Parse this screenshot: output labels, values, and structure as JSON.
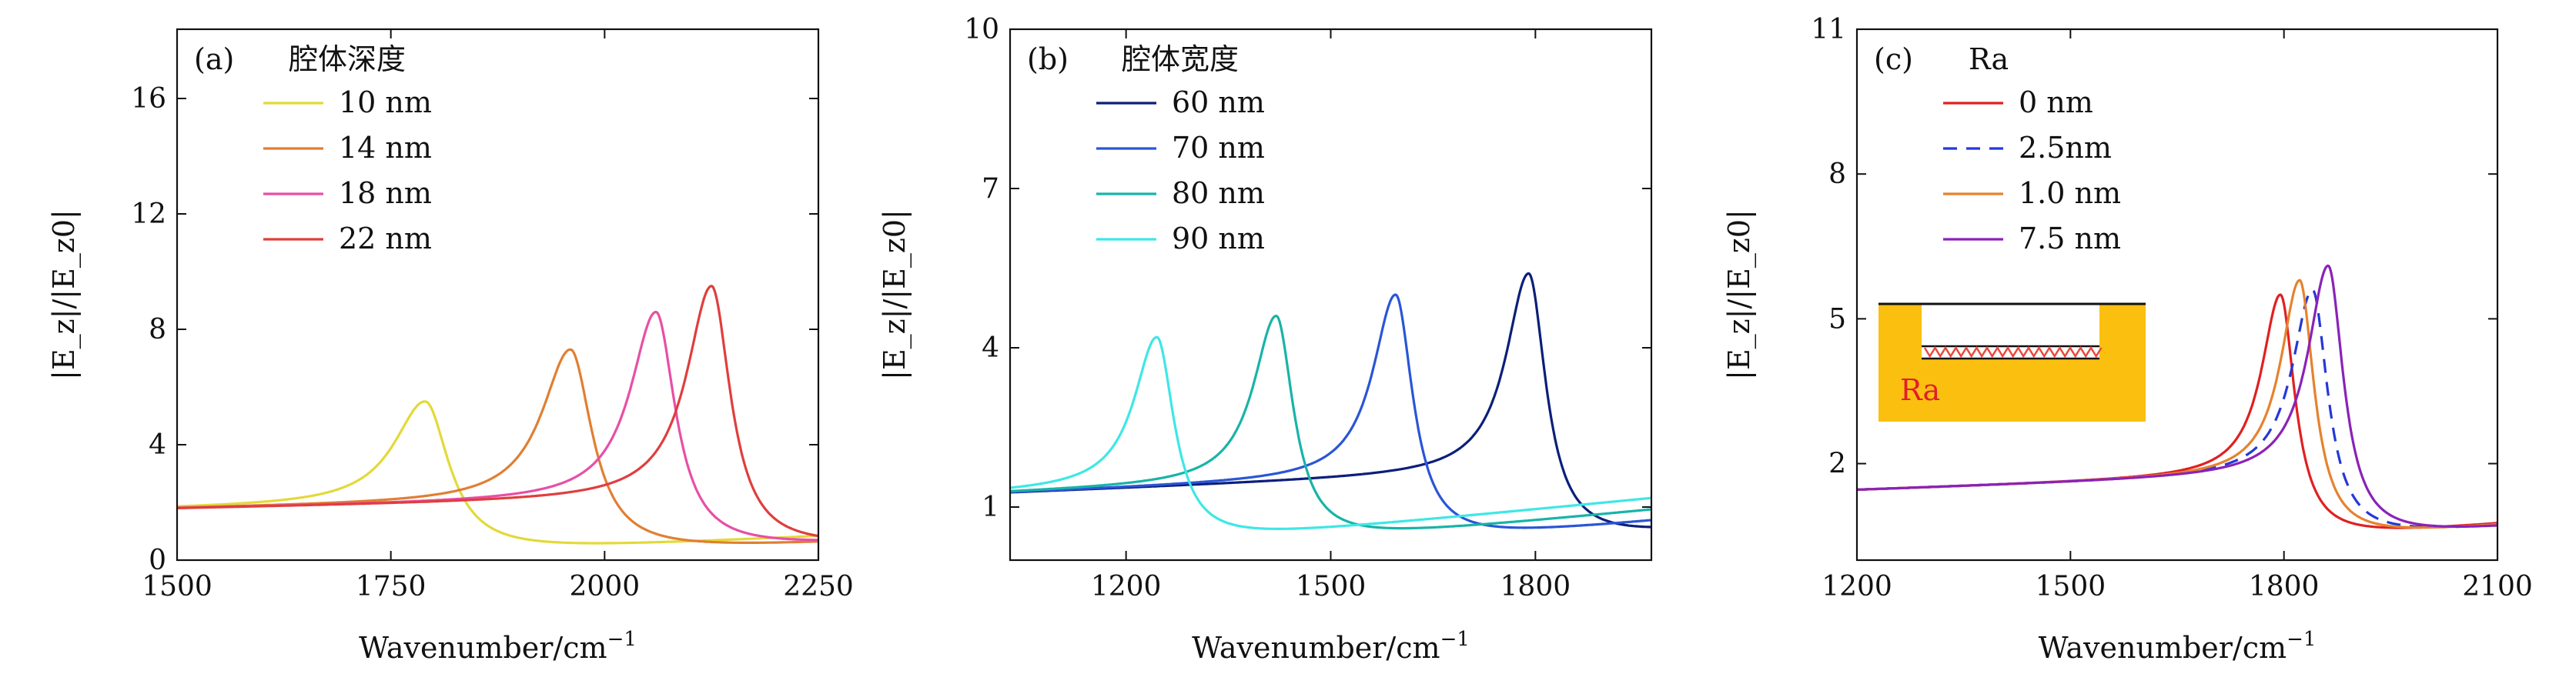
{
  "chart_data": [
    {
      "type": "line",
      "panel": "(a)",
      "legend_title": "腔体深度",
      "xlabel": "Wavenumber/cm",
      "xlabel_exp": "−1",
      "ylabel": "|E_z|/|E_z0|",
      "xlim": [
        1500,
        2250
      ],
      "ylim": [
        0,
        18.4
      ],
      "xticks": [
        1500,
        1750,
        2000,
        2250
      ],
      "yticks": [
        0,
        4,
        8,
        12,
        16
      ],
      "series": [
        {
          "name": "10 nm",
          "color": "#e3d93a",
          "dash": "",
          "base": 1.5,
          "x0": 1790,
          "peak": 5.5,
          "w": 44,
          "tail": 0.15,
          "slope": 0.0016
        },
        {
          "name": "14 nm",
          "color": "#e07f33",
          "dash": "",
          "base": 1.5,
          "x0": 1960,
          "peak": 7.3,
          "w": 40,
          "tail": 0.15,
          "slope": 0.0016
        },
        {
          "name": "18 nm",
          "color": "#e74fa6",
          "dash": "",
          "base": 1.5,
          "x0": 2060,
          "peak": 8.6,
          "w": 36,
          "tail": 0.25,
          "slope": 0.0016
        },
        {
          "name": "22 nm",
          "color": "#df3e3e",
          "dash": "",
          "base": 1.5,
          "x0": 2125,
          "peak": 9.5,
          "w": 35,
          "tail": 0.25,
          "slope": 0.0016
        }
      ]
    },
    {
      "type": "line",
      "panel": "(b)",
      "legend_title": "腔体宽度",
      "xlabel": "Wavenumber/cm",
      "xlabel_exp": "−1",
      "ylabel": "|E_z|/|E_z0|",
      "xlim": [
        1030,
        1970
      ],
      "ylim": [
        0,
        10
      ],
      "xticks": [
        1200,
        1500,
        1800
      ],
      "yticks": [
        1,
        4,
        7,
        10
      ],
      "series": [
        {
          "name": "60 nm",
          "color": "#0b1f7a",
          "dash": "",
          "base": 1.25,
          "x0": 1790,
          "peak": 5.4,
          "w": 40,
          "tail": 0.25,
          "slope": 0.0014
        },
        {
          "name": "70 nm",
          "color": "#2a55d6",
          "dash": "",
          "base": 1.25,
          "x0": 1595,
          "peak": 5.0,
          "w": 40,
          "tail": 0.25,
          "slope": 0.0014
        },
        {
          "name": "80 nm",
          "color": "#19b3a8",
          "dash": "",
          "base": 1.25,
          "x0": 1420,
          "peak": 4.6,
          "w": 40,
          "tail": 0.25,
          "slope": 0.0014
        },
        {
          "name": "90 nm",
          "color": "#3ee7e6",
          "dash": "",
          "base": 1.25,
          "x0": 1245,
          "peak": 4.2,
          "w": 40,
          "tail": 0.25,
          "slope": 0.0014
        }
      ]
    },
    {
      "type": "line",
      "panel": "(c)",
      "legend_title": "Ra",
      "xlabel": "Wavenumber/cm",
      "xlabel_exp": "−1",
      "ylabel": "|E_z|/|E_z0|",
      "xlim": [
        1200,
        2100
      ],
      "ylim": [
        0,
        11
      ],
      "xticks": [
        1200,
        1500,
        1800,
        2100
      ],
      "yticks": [
        2,
        5,
        8,
        11
      ],
      "inset_label": "Ra",
      "series": [
        {
          "name": "0 nm",
          "color": "#e02020",
          "dash": "",
          "base": 1.35,
          "x0": 1795,
          "peak": 5.5,
          "w": 32,
          "tail": 0.35,
          "slope": 0.0014
        },
        {
          "name": "2.5nm",
          "color": "#2438d8",
          "dash": "18,12",
          "base": 1.35,
          "x0": 1840,
          "peak": 5.6,
          "w": 34,
          "tail": 0.35,
          "slope": 0.0014
        },
        {
          "name": "1.0 nm",
          "color": "#e6822e",
          "dash": "",
          "base": 1.35,
          "x0": 1822,
          "peak": 5.8,
          "w": 32,
          "tail": 0.35,
          "slope": 0.0014
        },
        {
          "name": "7.5 nm",
          "color": "#8a22b8",
          "dash": "",
          "base": 1.35,
          "x0": 1862,
          "peak": 6.1,
          "w": 34,
          "tail": 0.35,
          "slope": 0.0014
        }
      ]
    }
  ]
}
